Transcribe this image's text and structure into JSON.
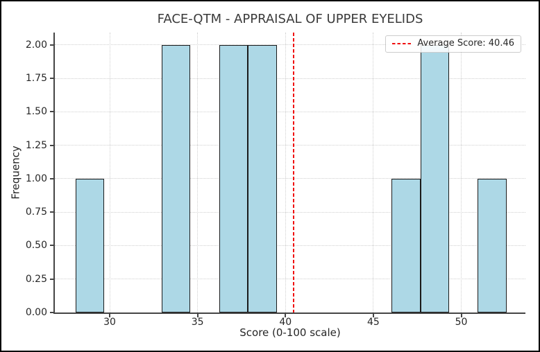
{
  "figure": {
    "background": "#ffffff",
    "border_color": "#000000"
  },
  "chart_data": {
    "type": "histogram",
    "title": "FACE-QTM - APPRAISAL OF UPPER EYELIDS",
    "xlabel": "Score (0-100 scale)",
    "ylabel": "Frequency",
    "xlim": [
      26.88,
      53.65
    ],
    "ylim": [
      0,
      2.093
    ],
    "x_ticks": [
      30,
      35,
      40,
      45,
      50
    ],
    "y_ticks": [
      {
        "value": 0.0,
        "label": "0.00"
      },
      {
        "value": 0.25,
        "label": "0.25"
      },
      {
        "value": 0.5,
        "label": "0.50"
      },
      {
        "value": 0.75,
        "label": "0.75"
      },
      {
        "value": 1.0,
        "label": "1.00"
      },
      {
        "value": 1.25,
        "label": "1.25"
      },
      {
        "value": 1.5,
        "label": "1.50"
      },
      {
        "value": 1.75,
        "label": "1.75"
      },
      {
        "value": 2.0,
        "label": "2.00"
      }
    ],
    "bins": [
      {
        "start": 28.05,
        "end": 29.69,
        "count": 1
      },
      {
        "start": 32.95,
        "end": 34.59,
        "count": 2
      },
      {
        "start": 36.22,
        "end": 37.86,
        "count": 2
      },
      {
        "start": 37.86,
        "end": 39.5,
        "count": 2
      },
      {
        "start": 46.04,
        "end": 47.67,
        "count": 1
      },
      {
        "start": 47.67,
        "end": 49.31,
        "count": 2
      },
      {
        "start": 50.94,
        "end": 52.58,
        "count": 1
      }
    ],
    "bar_fill_color": "#add8e6",
    "bar_edge_color": "#1a1a1a",
    "grid": {
      "visible": true,
      "style": "dotted",
      "color": "#cfcfcf"
    },
    "average_line": {
      "value": 40.46,
      "color": "#f01010",
      "style": "dashed"
    },
    "legend": {
      "position": "upper right",
      "entries": [
        {
          "marker": "red-dashed-line",
          "label": "Average Score: 40.46"
        }
      ]
    }
  }
}
